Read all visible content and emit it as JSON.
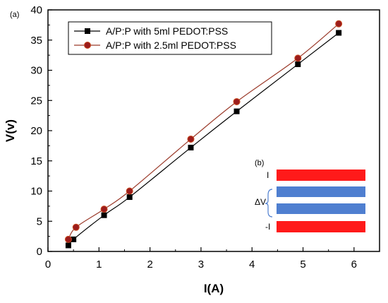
{
  "chart_data": {
    "type": "line",
    "panel_label": "(a)",
    "xlabel": "I(A)",
    "ylabel": "V(v)",
    "xlim": [
      0,
      6.5
    ],
    "ylim": [
      0,
      40
    ],
    "xticks": [
      0,
      1,
      2,
      3,
      4,
      5,
      6
    ],
    "yticks": [
      0,
      5,
      10,
      15,
      20,
      25,
      30,
      35,
      40
    ],
    "grid": false,
    "legend_position": "top-left",
    "series": [
      {
        "name": "A/P:P with 5ml PEDOT:PSS",
        "marker": "square",
        "color": "#000000",
        "line_color": "#000000",
        "x": [
          0.4,
          0.5,
          1.1,
          1.6,
          2.8,
          3.7,
          4.9,
          5.7
        ],
        "y": [
          1,
          2,
          6,
          9,
          17.2,
          23.2,
          31,
          36.2
        ]
      },
      {
        "name": "A/P:P with 2.5ml PEDOT:PSS",
        "marker": "circle",
        "color": "#9b1c1c",
        "line_color": "#9b3a2a",
        "x": [
          0.4,
          0.55,
          1.1,
          1.6,
          2.8,
          3.7,
          4.9,
          5.7
        ],
        "y": [
          2,
          4,
          7,
          10,
          18.6,
          24.8,
          32,
          37.7
        ]
      }
    ]
  },
  "inset": {
    "panel_label": "(b)",
    "top_label": "I",
    "middle_label": "ΔV",
    "bottom_label": "-I",
    "red_color": "#ff1a1a",
    "blue_color": "#4f7fd0"
  }
}
